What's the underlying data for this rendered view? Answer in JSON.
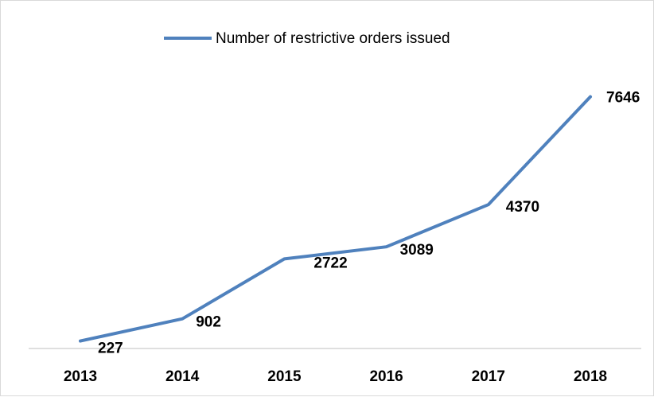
{
  "chart_data": {
    "type": "line",
    "title": "",
    "xlabel": "",
    "ylabel": "",
    "categories": [
      "2013",
      "2014",
      "2015",
      "2016",
      "2017",
      "2018"
    ],
    "series": [
      {
        "name": "Number of restrictive orders issued",
        "values": [
          227,
          902,
          2722,
          3089,
          4370,
          7646
        ],
        "color": "#4f81bd"
      }
    ],
    "data_labels": [
      "227",
      "902",
      "2722",
      "3089",
      "4370",
      "7646"
    ],
    "ylim": [
      0,
      8000
    ],
    "y_axis_visible": false,
    "grid": false,
    "legend_position": "top"
  }
}
